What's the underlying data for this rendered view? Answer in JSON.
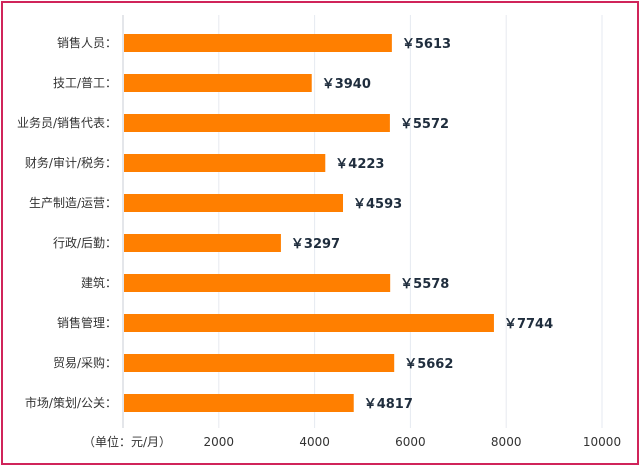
{
  "chart_data": {
    "type": "bar",
    "orientation": "horizontal",
    "title": "",
    "xlabel": "（单位：元/月）",
    "ylabel": "",
    "categories": [
      "销售人员",
      "技工/普工",
      "业务员/销售代表",
      "财务/审计/税务",
      "生产制造/运营",
      "行政/后勤",
      "建筑",
      "销售管理",
      "贸易/采购",
      "市场/策划/公关"
    ],
    "values": [
      5613,
      3940,
      5572,
      4223,
      4593,
      3297,
      5578,
      7744,
      5662,
      4817
    ],
    "value_labels": [
      "￥5613",
      "￥3940",
      "￥5572",
      "￥4223",
      "￥4593",
      "￥3297",
      "￥5578",
      "￥7744",
      "￥5662",
      "￥4817"
    ],
    "category_suffix": "：",
    "xlim": [
      0,
      10000
    ],
    "ticks": [
      2000,
      4000,
      6000,
      8000,
      10000
    ],
    "tick_labels": [
      "2000",
      "4000",
      "6000",
      "8000",
      "10000"
    ],
    "grid": true,
    "colors": {
      "bar": "#ff7f00",
      "border": "#d0245a",
      "grid": "#e6eaf0"
    }
  }
}
